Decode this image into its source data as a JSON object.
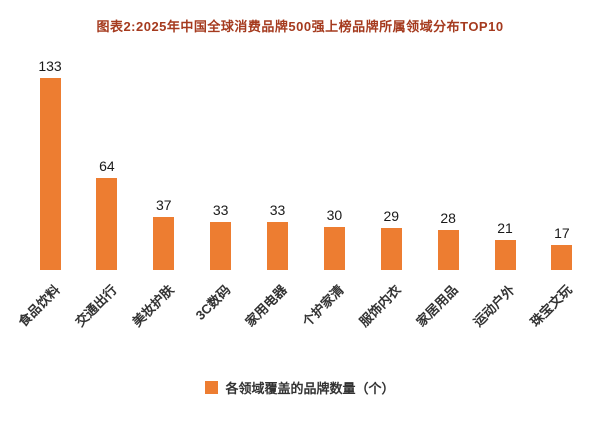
{
  "title": "图表2:2025年中国全球消费品牌500强上榜品牌所属领域分布TOP10",
  "legend": {
    "label": "各领域覆盖的品牌数量（个）",
    "swatch_color": "#ed7d31"
  },
  "colors": {
    "bar": "#ed7d31",
    "title_text": "#a53a1e",
    "label_text": "#333333",
    "value_text": "#1a1a1a",
    "background": "#ffffff"
  },
  "chart_data": {
    "type": "bar",
    "title": "图表2:2025年中国全球消费品牌500强上榜品牌所属领域分布TOP10",
    "categories": [
      "食品饮料",
      "交通出行",
      "美妆护肤",
      "3C数码",
      "家用电器",
      "个护家清",
      "服饰内衣",
      "家居用品",
      "运动户外",
      "珠宝文玩"
    ],
    "values": [
      133,
      64,
      37,
      33,
      33,
      30,
      29,
      28,
      21,
      17
    ],
    "series_name": "各领域覆盖的品牌数量（个）",
    "xlabel": "",
    "ylabel": "",
    "ylim": [
      0,
      140
    ],
    "grid": false,
    "data_labels": true,
    "bar_color": "#ed7d31",
    "legend_position": "bottom"
  }
}
